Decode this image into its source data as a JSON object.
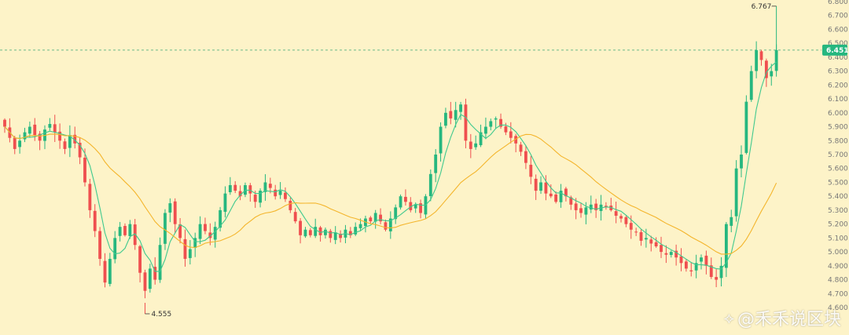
{
  "colors": {
    "up": "#26b77f",
    "down": "#ef4f4f",
    "ma_fast": "#3ec98e",
    "ma_slow": "#f4b52c",
    "last_price_line": "#3aa575",
    "axis_text": "#777777"
  },
  "watermark": {
    "icon": "diamond-logo-icon",
    "text": "@禾禾说区块"
  },
  "chart_data": {
    "type": "candlestick",
    "title": "",
    "y_axis": {
      "position": "right",
      "range": [
        4.6,
        6.8
      ],
      "ticks": [
        "6.800",
        "6.700",
        "6.600",
        "6.500",
        "6.400",
        "6.300",
        "6.200",
        "6.100",
        "6.000",
        "5.900",
        "5.800",
        "5.700",
        "5.600",
        "5.500",
        "5.400",
        "5.300",
        "5.200",
        "5.100",
        "5.000",
        "4.900",
        "4.800",
        "4.700",
        "4.600"
      ]
    },
    "last_price": {
      "value": 6.451,
      "label": "6.451"
    },
    "annotations": [
      {
        "label": "6.767",
        "value": 6.767,
        "kind": "high"
      },
      {
        "label": "4.555",
        "value": 4.555,
        "kind": "low"
      }
    ],
    "moving_averages": [
      {
        "name": "MA fast",
        "color_key": "ma_fast"
      },
      {
        "name": "MA slow",
        "color_key": "ma_slow"
      }
    ],
    "closes": [
      5.9,
      5.82,
      5.74,
      5.8,
      5.86,
      5.9,
      5.84,
      5.8,
      5.88,
      5.92,
      5.86,
      5.8,
      5.74,
      5.84,
      5.78,
      5.68,
      5.5,
      5.3,
      5.15,
      4.95,
      4.78,
      4.95,
      5.1,
      5.18,
      5.12,
      5.2,
      5.05,
      4.85,
      4.72,
      4.88,
      4.8,
      5.05,
      5.28,
      5.35,
      5.2,
      5.1,
      4.95,
      5.02,
      5.1,
      5.2,
      5.15,
      5.1,
      5.18,
      5.3,
      5.42,
      5.48,
      5.44,
      5.4,
      5.48,
      5.42,
      5.36,
      5.44,
      5.5,
      5.46,
      5.4,
      5.44,
      5.38,
      5.3,
      5.22,
      5.12,
      5.16,
      5.12,
      5.18,
      5.12,
      5.16,
      5.1,
      5.14,
      5.1,
      5.16,
      5.12,
      5.18,
      5.2,
      5.24,
      5.22,
      5.28,
      5.22,
      5.16,
      5.24,
      5.32,
      5.4,
      5.36,
      5.3,
      5.34,
      5.28,
      5.4,
      5.56,
      5.7,
      5.9,
      6.0,
      5.96,
      6.02,
      6.06,
      5.8,
      5.74,
      5.78,
      5.86,
      5.9,
      5.94,
      5.96,
      5.9,
      5.86,
      5.82,
      5.78,
      5.72,
      5.64,
      5.54,
      5.44,
      5.5,
      5.42,
      5.4,
      5.36,
      5.44,
      5.4,
      5.34,
      5.3,
      5.28,
      5.32,
      5.34,
      5.3,
      5.34,
      5.32,
      5.3,
      5.26,
      5.24,
      5.2,
      5.16,
      5.14,
      5.08,
      5.1,
      5.06,
      5.04,
      5.0,
      4.98,
      5.0,
      4.96,
      4.92,
      4.88,
      4.86,
      4.92,
      4.96,
      4.9,
      4.82,
      4.8,
      4.9,
      5.2,
      5.25,
      5.6,
      5.7,
      6.08,
      6.3,
      6.45,
      6.38,
      6.25,
      6.3,
      6.451
    ]
  }
}
